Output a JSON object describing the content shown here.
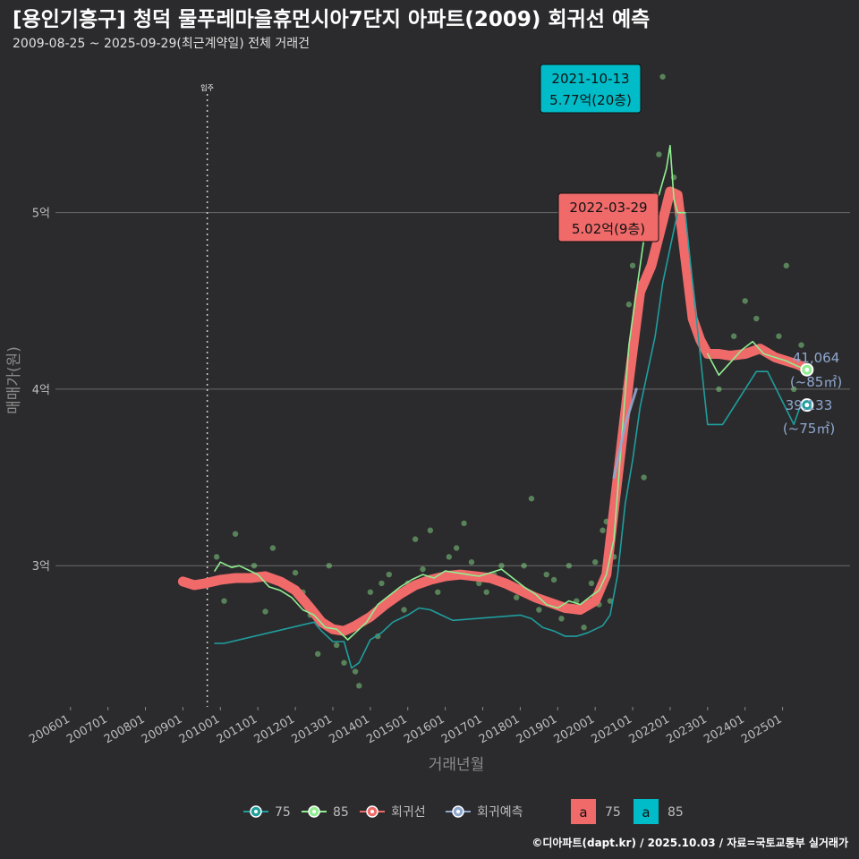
{
  "header": {
    "title": "[용인기흥구] 청덕 물푸레마을휴먼시아7단지 아파트(2009) 회귀선 예측",
    "subtitle": "2009-08-25 ~ 2025-09-29(최근계약일) 전체 거래건"
  },
  "footer": {
    "text": "©디아파트(dapt.kr) / 2025.10.03 / 자료=국토교통부 실거래가"
  },
  "colors": {
    "background": "#2b2b2d",
    "grid": "#6a6a6a",
    "s75": "#1f9e9e",
    "s85": "#90ee90",
    "regression": "#f06a6a",
    "forecast": "#8fa8cf",
    "callout_teal": "#00bcc8",
    "callout_red": "#f06a6a"
  },
  "chart_data": {
    "type": "line",
    "title": "[용인기흥구] 청덕 물푸레마을휴먼시아7단지 아파트(2009) 회귀선 예측",
    "xlabel": "거래년월",
    "ylabel": "매매가(원)",
    "xlim": [
      2005.6,
      2026.8
    ],
    "ylim": [
      2.2,
      5.85
    ],
    "x_ticks": [
      "200601",
      "200701",
      "200801",
      "200901",
      "201001",
      "201101",
      "201201",
      "201301",
      "201401",
      "201501",
      "201601",
      "201701",
      "201801",
      "201901",
      "202001",
      "202101",
      "202201",
      "202301",
      "202401",
      "202501"
    ],
    "y_ticks": [
      {
        "value": 3,
        "label": "3억"
      },
      {
        "value": 4,
        "label": "4억"
      },
      {
        "value": 5,
        "label": "5억"
      }
    ],
    "move_in": {
      "x": 2009.65,
      "label": "입주"
    },
    "legend": {
      "series": [
        {
          "key": "s75",
          "label": "75"
        },
        {
          "key": "s85",
          "label": "85"
        },
        {
          "key": "regression",
          "label": "회귀선"
        },
        {
          "key": "forecast",
          "label": "회귀예측"
        }
      ],
      "labels": [
        {
          "key": "callout_red",
          "text": "a",
          "label": "75"
        },
        {
          "key": "callout_teal",
          "text": "a",
          "label": "85"
        }
      ]
    },
    "callouts": [
      {
        "key": "callout_teal",
        "date": "2021-10-13",
        "value": "5.77억(20층)",
        "x": 2021.78,
        "y": 5.77
      },
      {
        "key": "callout_red",
        "date": "2022-03-29",
        "value": "5.02억(9층)",
        "x": 2022.24,
        "y": 5.02
      }
    ],
    "end_labels": [
      {
        "series": "s85",
        "price": "41,064",
        "area": "(~85㎡)",
        "x": 2025.65,
        "y": 4.11
      },
      {
        "series": "s75",
        "price": "39,133",
        "area": "(~75㎡)",
        "x": 2025.65,
        "y": 3.91
      }
    ],
    "series": [
      {
        "name": "85",
        "key": "s85",
        "x": [
          2009.85,
          2010.0,
          2010.3,
          2010.5,
          2010.7,
          2011.0,
          2011.3,
          2011.6,
          2011.9,
          2012.2,
          2012.5,
          2012.8,
          2013.1,
          2013.4,
          2013.6,
          2013.9,
          2014.2,
          2014.5,
          2014.8,
          2015.1,
          2015.4,
          2015.7,
          2016.0,
          2016.3,
          2016.6,
          2016.9,
          2017.2,
          2017.5,
          2017.8,
          2018.1,
          2018.4,
          2018.7,
          2019.0,
          2019.3,
          2019.6,
          2019.9,
          2020.1,
          2020.3,
          2020.5,
          2020.7,
          2020.9,
          2021.1,
          2021.3,
          2021.5,
          2021.7,
          2021.9,
          2022.0,
          2022.1,
          2022.2,
          2022.4,
          2022.6,
          2022.8,
          2023.0,
          2023.3,
          2023.6,
          2023.9,
          2024.2,
          2024.5,
          2024.8,
          2025.1,
          2025.4,
          2025.65
        ],
        "values": [
          2.97,
          3.02,
          2.99,
          3.0,
          2.98,
          2.95,
          2.88,
          2.86,
          2.82,
          2.75,
          2.72,
          2.65,
          2.64,
          2.58,
          2.62,
          2.68,
          2.78,
          2.83,
          2.88,
          2.92,
          2.95,
          2.93,
          2.97,
          2.96,
          2.95,
          2.94,
          2.96,
          2.98,
          2.93,
          2.88,
          2.84,
          2.78,
          2.76,
          2.8,
          2.78,
          2.83,
          2.86,
          2.95,
          3.15,
          3.7,
          4.25,
          4.55,
          4.85,
          5.0,
          5.1,
          5.25,
          5.38,
          5.08,
          5.0,
          5.0,
          null,
          null,
          4.2,
          4.08,
          4.15,
          4.22,
          4.27,
          4.2,
          4.18,
          4.16,
          4.13,
          4.11
        ]
      },
      {
        "name": "75",
        "key": "s75",
        "x": [
          2009.85,
          2010.1,
          2012.5,
          2012.7,
          2013.0,
          2013.3,
          2013.5,
          2013.7,
          2014.0,
          2014.3,
          2014.6,
          2015.0,
          2015.3,
          2015.6,
          2015.9,
          2016.2,
          2018.0,
          2018.3,
          2018.6,
          2018.9,
          2019.2,
          2019.5,
          2019.8,
          2020.0,
          2020.2,
          2020.4,
          2020.6,
          2020.8,
          2021.0,
          2021.2,
          2021.4,
          2021.6,
          2021.8,
          2022.0,
          2022.2,
          2022.4,
          2023.0,
          2023.4,
          2024.3,
          2024.6,
          2025.3,
          2025.5,
          2025.65
        ],
        "values": [
          2.56,
          2.56,
          2.68,
          2.63,
          2.57,
          2.57,
          2.42,
          2.45,
          2.58,
          2.62,
          2.68,
          2.72,
          2.76,
          2.75,
          2.72,
          2.69,
          2.72,
          2.7,
          2.65,
          2.63,
          2.6,
          2.6,
          2.62,
          2.64,
          2.66,
          2.72,
          2.95,
          3.35,
          3.6,
          3.9,
          4.1,
          4.3,
          4.6,
          4.8,
          5.0,
          5.0,
          3.8,
          3.8,
          4.1,
          4.1,
          3.8,
          3.92,
          3.91
        ]
      },
      {
        "name": "회귀선",
        "key": "regression",
        "x": [
          2009.0,
          2009.3,
          2009.6,
          2010.0,
          2010.4,
          2010.8,
          2011.2,
          2011.6,
          2012.0,
          2012.4,
          2012.7,
          2013.0,
          2013.3,
          2013.6,
          2014.0,
          2014.4,
          2014.8,
          2015.2,
          2015.6,
          2016.0,
          2016.4,
          2016.8,
          2017.2,
          2017.6,
          2018.0,
          2018.4,
          2018.8,
          2019.2,
          2019.6,
          2020.0,
          2020.3,
          2020.6,
          2020.9,
          2021.2,
          2021.5,
          2021.8,
          2022.0,
          2022.2,
          2022.4,
          2022.6,
          2022.8,
          2023.0,
          2023.3,
          2023.6,
          2024.0,
          2024.4,
          2024.8,
          2025.1,
          2025.4,
          2025.6
        ],
        "values": [
          2.91,
          2.89,
          2.9,
          2.92,
          2.93,
          2.93,
          2.94,
          2.91,
          2.86,
          2.76,
          2.68,
          2.64,
          2.63,
          2.66,
          2.71,
          2.78,
          2.84,
          2.89,
          2.92,
          2.94,
          2.95,
          2.94,
          2.93,
          2.9,
          2.86,
          2.82,
          2.79,
          2.76,
          2.75,
          2.8,
          2.95,
          3.5,
          4.05,
          4.55,
          4.7,
          4.95,
          5.12,
          5.1,
          4.75,
          4.4,
          4.28,
          4.2,
          4.2,
          4.19,
          4.2,
          4.23,
          4.18,
          4.16,
          4.14,
          4.12
        ]
      },
      {
        "name": "회귀예측",
        "key": "forecast",
        "x": [
          2020.5,
          2020.8,
          2021.1
        ],
        "values": [
          3.5,
          3.8,
          4.0
        ]
      }
    ],
    "points": [
      [
        2009.9,
        3.05
      ],
      [
        2010.1,
        2.8
      ],
      [
        2010.4,
        3.18
      ],
      [
        2010.9,
        3.0
      ],
      [
        2011.2,
        2.74
      ],
      [
        2011.4,
        3.1
      ],
      [
        2011.7,
        2.9
      ],
      [
        2012.0,
        2.96
      ],
      [
        2012.2,
        2.85
      ],
      [
        2012.4,
        2.72
      ],
      [
        2012.6,
        2.5
      ],
      [
        2012.9,
        3.0
      ],
      [
        2013.1,
        2.55
      ],
      [
        2013.3,
        2.45
      ],
      [
        2013.4,
        2.65
      ],
      [
        2013.6,
        2.4
      ],
      [
        2013.7,
        2.32
      ],
      [
        2013.9,
        2.7
      ],
      [
        2014.0,
        2.85
      ],
      [
        2014.2,
        2.6
      ],
      [
        2014.3,
        2.9
      ],
      [
        2014.5,
        2.95
      ],
      [
        2014.7,
        2.82
      ],
      [
        2014.9,
        2.75
      ],
      [
        2015.0,
        2.9
      ],
      [
        2015.2,
        3.15
      ],
      [
        2015.4,
        2.98
      ],
      [
        2015.6,
        3.2
      ],
      [
        2015.8,
        2.85
      ],
      [
        2016.0,
        2.95
      ],
      [
        2016.1,
        3.05
      ],
      [
        2016.3,
        3.1
      ],
      [
        2016.5,
        3.24
      ],
      [
        2016.7,
        3.02
      ],
      [
        2016.9,
        2.9
      ],
      [
        2017.1,
        2.85
      ],
      [
        2017.3,
        2.95
      ],
      [
        2017.5,
        3.0
      ],
      [
        2017.7,
        2.88
      ],
      [
        2017.9,
        2.82
      ],
      [
        2018.1,
        3.0
      ],
      [
        2018.3,
        3.38
      ],
      [
        2018.5,
        2.75
      ],
      [
        2018.7,
        2.95
      ],
      [
        2018.9,
        2.92
      ],
      [
        2019.1,
        2.7
      ],
      [
        2019.3,
        3.0
      ],
      [
        2019.5,
        2.8
      ],
      [
        2019.7,
        2.65
      ],
      [
        2019.9,
        2.9
      ],
      [
        2020.0,
        3.02
      ],
      [
        2020.1,
        2.78
      ],
      [
        2020.2,
        3.2
      ],
      [
        2020.3,
        3.25
      ],
      [
        2020.4,
        2.8
      ],
      [
        2020.5,
        3.05
      ],
      [
        2020.6,
        3.5
      ],
      [
        2020.7,
        3.6
      ],
      [
        2020.8,
        4.0
      ],
      [
        2020.9,
        4.48
      ],
      [
        2021.0,
        4.7
      ],
      [
        2021.1,
        4.35
      ],
      [
        2021.2,
        4.6
      ],
      [
        2021.3,
        3.5
      ],
      [
        2021.5,
        4.95
      ],
      [
        2021.6,
        5.1
      ],
      [
        2021.7,
        5.33
      ],
      [
        2021.8,
        5.77
      ],
      [
        2022.0,
        5.1
      ],
      [
        2022.1,
        5.2
      ],
      [
        2023.3,
        4.0
      ],
      [
        2023.7,
        4.3
      ],
      [
        2024.0,
        4.5
      ],
      [
        2024.3,
        4.4
      ],
      [
        2024.6,
        4.2
      ],
      [
        2024.9,
        4.3
      ],
      [
        2025.1,
        4.7
      ],
      [
        2025.3,
        4.0
      ],
      [
        2025.5,
        4.25
      ]
    ]
  }
}
